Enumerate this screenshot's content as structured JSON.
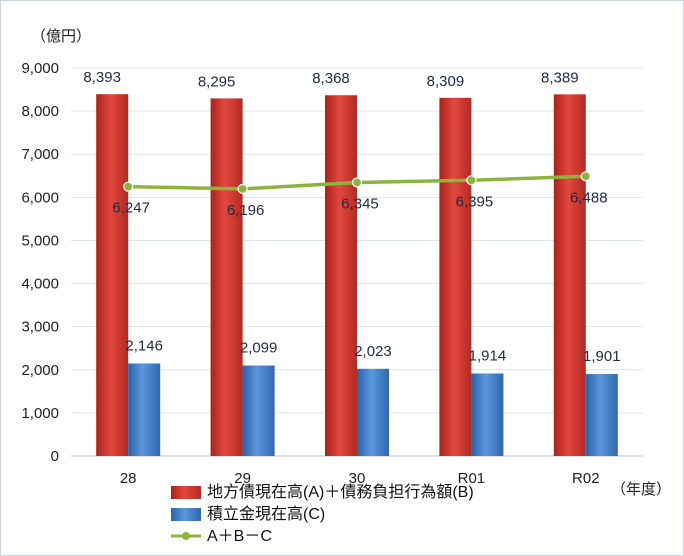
{
  "chart_data": {
    "type": "bar",
    "y_unit_label": "（億円）",
    "x_unit_label": "（年度）",
    "categories": [
      "28",
      "29",
      "30",
      "R01",
      "R02"
    ],
    "ylim": [
      0,
      9000
    ],
    "yticks": [
      0,
      1000,
      2000,
      3000,
      4000,
      5000,
      6000,
      7000,
      8000,
      9000
    ],
    "ytick_labels": [
      "0",
      "1,000",
      "2,000",
      "3,000",
      "4,000",
      "5,000",
      "6,000",
      "7,000",
      "8,000",
      "9,000"
    ],
    "grid": "horizontal",
    "legend_position": "bottom",
    "series": [
      {
        "name": "地方債現在高(A)＋債務負担行為額(B)",
        "kind": "bar",
        "color": "#c0392f",
        "values": [
          8393,
          8295,
          8368,
          8309,
          8389
        ],
        "labels": [
          "8,393",
          "8,295",
          "8,368",
          "8,309",
          "8,389"
        ]
      },
      {
        "name": "積立金現在高(C)",
        "kind": "bar",
        "color": "#3a78c2",
        "values": [
          2146,
          2099,
          2023,
          1914,
          1901
        ],
        "labels": [
          "2,146",
          "2,099",
          "2,023",
          "1,914",
          "1,901"
        ]
      },
      {
        "name": "A＋B－C",
        "kind": "line",
        "color": "#8db33f",
        "values": [
          6247,
          6196,
          6345,
          6395,
          6488
        ],
        "labels": [
          "6,247",
          "6,196",
          "6,345",
          "6,395",
          "6,488"
        ]
      }
    ]
  }
}
